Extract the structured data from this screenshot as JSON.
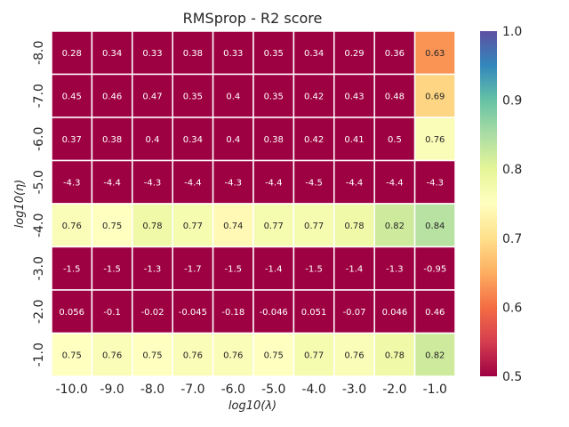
{
  "chart_data": {
    "type": "heatmap",
    "title": "RMSprop - R2 score",
    "xlabel": "log10(λ)",
    "ylabel": "log10(η)",
    "x_tick_labels": [
      "-10.0",
      "-9.0",
      "-8.0",
      "-7.0",
      "-6.0",
      "-5.0",
      "-4.0",
      "-3.0",
      "-2.0",
      "-1.0"
    ],
    "y_tick_labels": [
      "-8.0",
      "-7.0",
      "-6.0",
      "-5.0",
      "-4.0",
      "-3.0",
      "-2.0",
      "-1.0"
    ],
    "values": [
      [
        0.28,
        0.34,
        0.33,
        0.38,
        0.33,
        0.35,
        0.34,
        0.29,
        0.36,
        0.63
      ],
      [
        0.45,
        0.46,
        0.47,
        0.35,
        0.4,
        0.35,
        0.42,
        0.43,
        0.48,
        0.69
      ],
      [
        0.37,
        0.38,
        0.4,
        0.34,
        0.4,
        0.38,
        0.42,
        0.41,
        0.5,
        0.76
      ],
      [
        -4.3,
        -4.4,
        -4.3,
        -4.4,
        -4.3,
        -4.4,
        -4.5,
        -4.4,
        -4.4,
        -4.3
      ],
      [
        0.76,
        0.75,
        0.78,
        0.77,
        0.74,
        0.77,
        0.77,
        0.78,
        0.82,
        0.84
      ],
      [
        -1.5,
        -1.5,
        -1.3,
        -1.7,
        -1.5,
        -1.4,
        -1.5,
        -1.4,
        -1.3,
        -0.95
      ],
      [
        0.056,
        -0.1,
        -0.02,
        -0.045,
        -0.18,
        -0.046,
        0.051,
        -0.07,
        0.046,
        0.46
      ],
      [
        0.75,
        0.76,
        0.75,
        0.76,
        0.76,
        0.75,
        0.77,
        0.76,
        0.78,
        0.82
      ]
    ],
    "value_labels": [
      [
        "0.28",
        "0.34",
        "0.33",
        "0.38",
        "0.33",
        "0.35",
        "0.34",
        "0.29",
        "0.36",
        "0.63"
      ],
      [
        "0.45",
        "0.46",
        "0.47",
        "0.35",
        "0.4",
        "0.35",
        "0.42",
        "0.43",
        "0.48",
        "0.69"
      ],
      [
        "0.37",
        "0.38",
        "0.4",
        "0.34",
        "0.4",
        "0.38",
        "0.42",
        "0.41",
        "0.5",
        "0.76"
      ],
      [
        "-4.3",
        "-4.4",
        "-4.3",
        "-4.4",
        "-4.3",
        "-4.4",
        "-4.5",
        "-4.4",
        "-4.4",
        "-4.3"
      ],
      [
        "0.76",
        "0.75",
        "0.78",
        "0.77",
        "0.74",
        "0.77",
        "0.77",
        "0.78",
        "0.82",
        "0.84"
      ],
      [
        "-1.5",
        "-1.5",
        "-1.3",
        "-1.7",
        "-1.5",
        "-1.4",
        "-1.5",
        "-1.4",
        "-1.3",
        "-0.95"
      ],
      [
        "0.056",
        "-0.1",
        "-0.02",
        "-0.045",
        "-0.18",
        "-0.046",
        "0.051",
        "-0.07",
        "0.046",
        "0.46"
      ],
      [
        "0.75",
        "0.76",
        "0.75",
        "0.76",
        "0.76",
        "0.75",
        "0.77",
        "0.76",
        "0.78",
        "0.82"
      ]
    ],
    "colorbar": {
      "vmin": 0.5,
      "vmax": 1.0,
      "ticks": [
        "0.5",
        "0.6",
        "0.7",
        "0.8",
        "0.9",
        "1.0"
      ],
      "colormap": "Spectral",
      "colors": [
        "#9e0142",
        "#d53e4f",
        "#f46d43",
        "#fdae61",
        "#fee08b",
        "#ffffbf",
        "#e6f598",
        "#abdda4",
        "#66c2a5",
        "#3288bd",
        "#5e4fa2"
      ]
    }
  }
}
